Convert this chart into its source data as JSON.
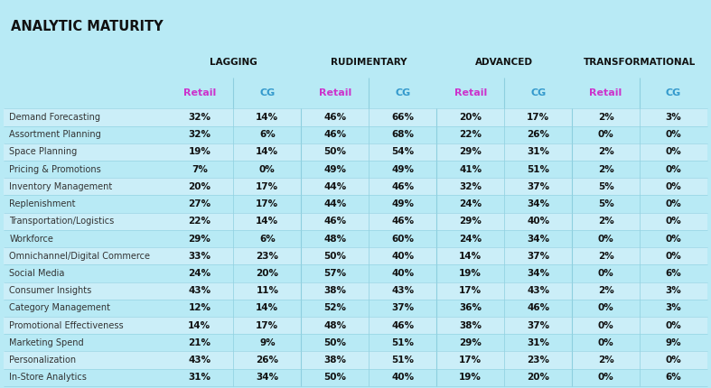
{
  "title": "ANALYTIC MATURITY",
  "background_color": "#b8eaf5",
  "header1": [
    "LAGGING",
    "RUDIMENTARY",
    "ADVANCED",
    "TRANSFORMATIONAL"
  ],
  "header2_retail_color": "#cc33cc",
  "header2_cg_color": "#3399cc",
  "row_labels": [
    "Demand Forecasting",
    "Assortment Planning",
    "Space Planning",
    "Pricing & Promotions",
    "Inventory Management",
    "Replenishment",
    "Transportation/Logistics",
    "Workforce",
    "Omnichannel/Digital Commerce",
    "Social Media",
    "Consumer Insights",
    "Category Management",
    "Promotional Effectiveness",
    "Marketing Spend",
    "Personalization",
    "In-Store Analytics"
  ],
  "data": [
    [
      32,
      14,
      46,
      66,
      20,
      17,
      2,
      3
    ],
    [
      32,
      6,
      46,
      68,
      22,
      26,
      0,
      0
    ],
    [
      19,
      14,
      50,
      54,
      29,
      31,
      2,
      0
    ],
    [
      7,
      0,
      49,
      49,
      41,
      51,
      2,
      0
    ],
    [
      20,
      17,
      44,
      46,
      32,
      37,
      5,
      0
    ],
    [
      27,
      17,
      44,
      49,
      24,
      34,
      5,
      0
    ],
    [
      22,
      14,
      46,
      46,
      29,
      40,
      2,
      0
    ],
    [
      29,
      6,
      48,
      60,
      24,
      34,
      0,
      0
    ],
    [
      33,
      23,
      50,
      40,
      14,
      37,
      2,
      0
    ],
    [
      24,
      20,
      57,
      40,
      19,
      34,
      0,
      6
    ],
    [
      43,
      11,
      38,
      43,
      17,
      43,
      2,
      3
    ],
    [
      12,
      14,
      52,
      37,
      36,
      46,
      0,
      3
    ],
    [
      14,
      17,
      48,
      46,
      38,
      37,
      0,
      0
    ],
    [
      21,
      9,
      50,
      51,
      29,
      31,
      0,
      9
    ],
    [
      43,
      26,
      38,
      51,
      17,
      23,
      2,
      0
    ],
    [
      31,
      34,
      50,
      40,
      19,
      20,
      0,
      6
    ]
  ],
  "row_bg_even": "#cbeef8",
  "row_bg_odd": "#b8eaf5",
  "divider_color": "#8ecfdf",
  "data_color": "#111111",
  "label_color": "#333333",
  "title_color": "#111111",
  "header1_color": "#111111",
  "data_fontsize": 7.5,
  "label_fontsize": 7.0,
  "header1_fontsize": 7.5,
  "header2_fontsize": 8.0,
  "title_fontsize": 10.5
}
